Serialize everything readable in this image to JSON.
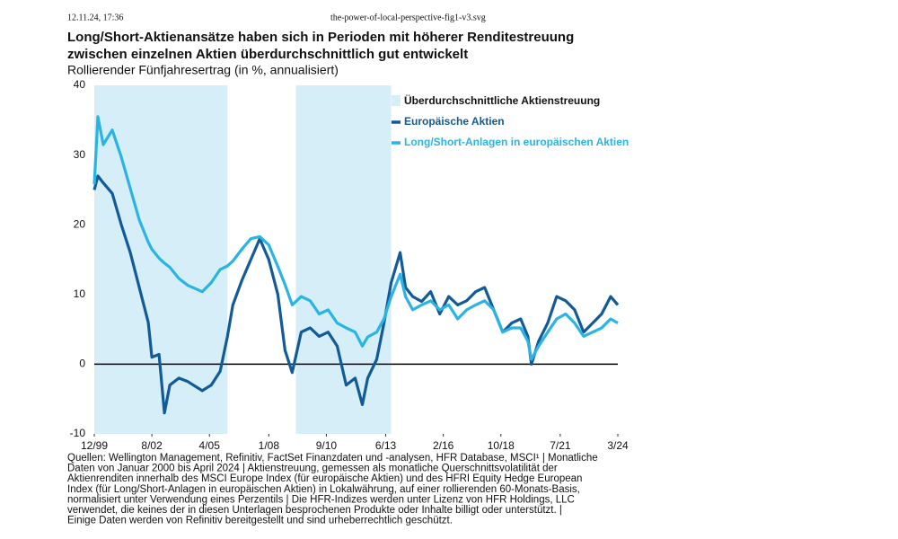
{
  "browser_header": {
    "timestamp": "12.11.24, 17:36",
    "file": "the-power-of-local-perspective-fig1-v3.svg"
  },
  "chart_data": {
    "type": "line",
    "title": [
      "Long/Short-Aktienansätze haben sich in Perioden mit höherer Renditestreuung",
      "zwischen einzelnen Aktien überdurchschnittlich gut entwickelt"
    ],
    "subtitle": "Rollierender Fünfjahresertrag (in %, annualisiert)",
    "shaded_periods": {
      "name": "Überdurchschnittliche Aktienstreuung",
      "color": "#d6eef8",
      "ranges": [
        [
          "1999-12",
          "2006-02"
        ],
        [
          "2009-04",
          "2013-09"
        ]
      ]
    },
    "x": [
      "1999-12",
      "2000-02",
      "2000-05",
      "2000-10",
      "2001-03",
      "2001-08",
      "2002-01",
      "2002-06",
      "2002-08",
      "2002-12",
      "2003-03",
      "2003-06",
      "2003-11",
      "2004-04",
      "2004-12",
      "2005-05",
      "2005-10",
      "2006-02",
      "2006-05",
      "2006-10",
      "2007-03",
      "2007-08",
      "2008-01",
      "2008-06",
      "2008-10",
      "2009-02",
      "2009-07",
      "2009-12",
      "2010-05",
      "2010-10",
      "2011-03",
      "2011-08",
      "2012-01",
      "2012-05",
      "2012-08",
      "2013-01",
      "2013-05",
      "2013-09",
      "2014-02",
      "2014-05",
      "2014-09",
      "2015-02",
      "2015-07",
      "2015-12",
      "2016-05",
      "2016-10",
      "2017-03",
      "2017-08",
      "2018-01",
      "2018-06",
      "2018-11",
      "2019-04",
      "2019-09",
      "2020-01",
      "2020-03",
      "2020-07",
      "2020-12",
      "2021-05",
      "2021-10",
      "2022-03",
      "2022-08",
      "2023-01",
      "2023-06",
      "2023-11",
      "2024-03"
    ],
    "series": [
      {
        "name": "Europäische Aktien",
        "color": "#125b97",
        "values": [
          25,
          27,
          26,
          24.5,
          20,
          16,
          11,
          6,
          1,
          1.4,
          -7,
          -3,
          -2,
          -2.5,
          -3.8,
          -3,
          -1,
          4,
          8.5,
          12,
          15,
          18,
          15,
          10,
          2,
          -1.2,
          4.6,
          5.2,
          4,
          4.6,
          2.6,
          -3,
          -2,
          -5.8,
          -2,
          0.7,
          5.9,
          11.7,
          16,
          11,
          9.7,
          9,
          10.4,
          7.2,
          9.7,
          8.5,
          9.1,
          10.4,
          11,
          7.8,
          4.6,
          5.9,
          6.5,
          4,
          0,
          3.3,
          5.9,
          9.7,
          9.1,
          7.8,
          4.6,
          5.9,
          7.2,
          9.7,
          8.5
        ]
      },
      {
        "name": "Long/Short-Anlagen in europäischen Aktien",
        "color": "#2ab4e4",
        "values": [
          25.8,
          35.5,
          31.5,
          33.6,
          29.7,
          25.2,
          20.7,
          17.5,
          16.5,
          15.2,
          14.5,
          13.9,
          12.3,
          11.3,
          10.4,
          11.7,
          13.6,
          14.1,
          14.8,
          16.5,
          18,
          18.3,
          17.1,
          14,
          11.4,
          8.5,
          9.7,
          9.1,
          7.2,
          7.8,
          5.9,
          5.2,
          4.6,
          2.6,
          3.9,
          4.6,
          6.5,
          9.7,
          12.9,
          9.7,
          7.8,
          8.5,
          9.1,
          7.8,
          8.5,
          6.5,
          7.8,
          8.5,
          9.1,
          7.8,
          4.6,
          5.2,
          5.2,
          3.3,
          0.7,
          2.6,
          4.6,
          6.5,
          7.2,
          5.9,
          4,
          4.6,
          5.2,
          6.5,
          5.9
        ]
      }
    ],
    "xlim": [
      "1999-12",
      "2024-03"
    ],
    "xticks": [
      {
        "value": "1999-12",
        "label": "12/99"
      },
      {
        "value": "2002-08",
        "label": "8/02"
      },
      {
        "value": "2005-04",
        "label": "4/05"
      },
      {
        "value": "2008-01",
        "label": "1/08"
      },
      {
        "value": "2010-09",
        "label": "9/10"
      },
      {
        "value": "2013-06",
        "label": "6/13"
      },
      {
        "value": "2016-02",
        "label": "2/16"
      },
      {
        "value": "2018-10",
        "label": "10/18"
      },
      {
        "value": "2021-07",
        "label": "7/21"
      },
      {
        "value": "2024-03",
        "label": "3/24"
      }
    ],
    "ylim": [
      -10,
      40
    ],
    "yticks": [
      -10,
      0,
      10,
      20,
      30,
      40
    ],
    "zero_line": true,
    "source": [
      "Quellen: Wellington Management, Refinitiv, FactSet Finanzdaten und -analysen, HFR Database, MSCI¹  |  Monatliche",
      "Daten von Januar 2000 bis April 2024  |  Aktienstreuung, gemessen als monatliche Querschnittsvolatilität der",
      "Aktienrenditen innerhalb des MSCI Europe Index (für europäische Aktien) und des HFRI Equity Hedge European",
      "Index (für Long/Short-Anlagen in europäischen Aktien) in Lokalwährung, auf einer rollierenden 60-Monats-Basis,",
      "normalisiert unter Verwendung eines Perzentils  |  Die HFR-Indizes werden unter Lizenz von HFR Holdings, LLC",
      "verwendet, die keines der in diesen Unterlagen besprochenen Produkte oder Inhalte billigt oder unterstützt.  |",
      "Einige Daten werden von Refinitiv bereitgestellt und sind urheberrechtlich geschützt."
    ]
  }
}
